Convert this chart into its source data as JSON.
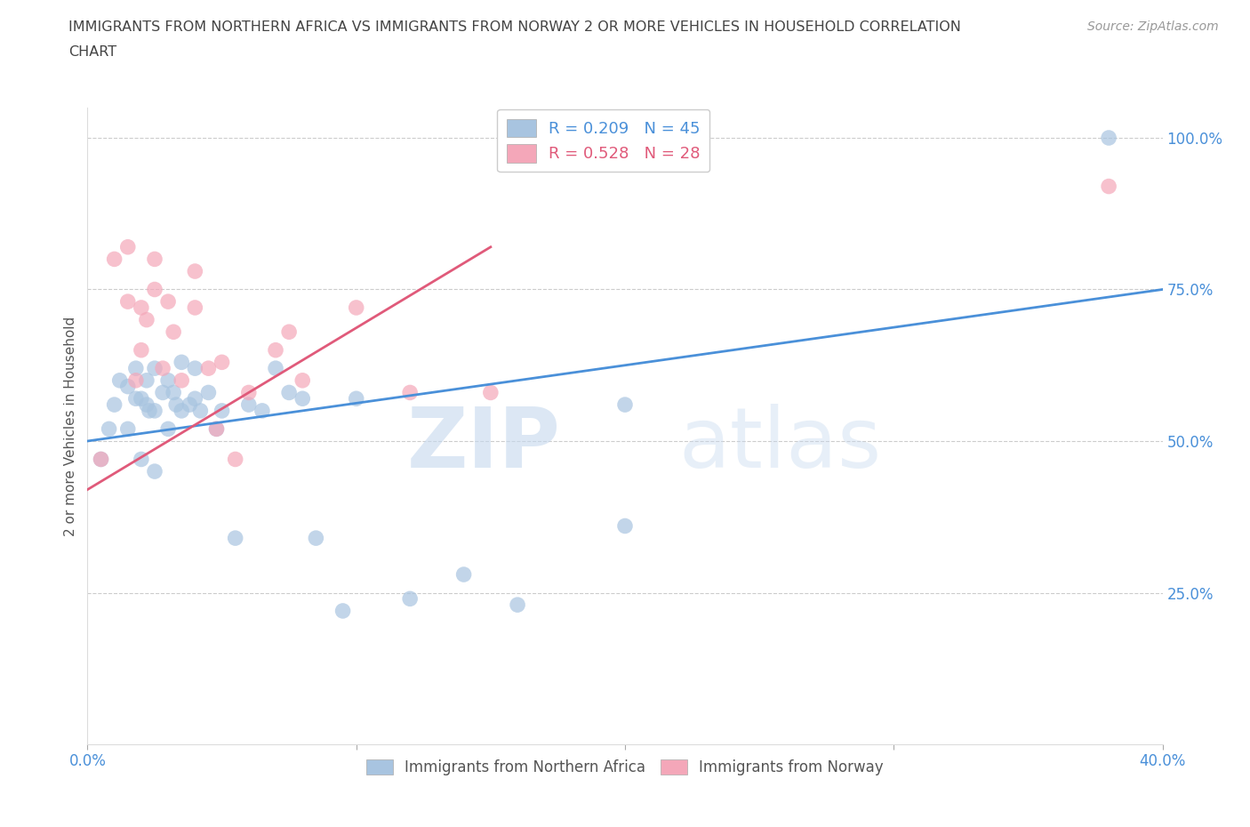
{
  "title_line1": "IMMIGRANTS FROM NORTHERN AFRICA VS IMMIGRANTS FROM NORWAY 2 OR MORE VEHICLES IN HOUSEHOLD CORRELATION",
  "title_line2": "CHART",
  "source": "Source: ZipAtlas.com",
  "ylabel": "2 or more Vehicles in Household",
  "watermark_zip": "ZIP",
  "watermark_atlas": "atlas",
  "xlim": [
    0.0,
    0.4
  ],
  "ylim": [
    0.0,
    1.05
  ],
  "xticks": [
    0.0,
    0.1,
    0.2,
    0.3,
    0.4
  ],
  "xticklabels": [
    "0.0%",
    "",
    "",
    "",
    "40.0%"
  ],
  "yticks_right": [
    0.25,
    0.5,
    0.75,
    1.0
  ],
  "yticklabels_right": [
    "25.0%",
    "50.0%",
    "75.0%",
    "100.0%"
  ],
  "blue_color": "#a8c4e0",
  "pink_color": "#f4a7b9",
  "blue_line_color": "#4a90d9",
  "pink_line_color": "#e05a7a",
  "blue_label": "Immigrants from Northern Africa",
  "pink_label": "Immigrants from Norway",
  "legend_R_blue": "R = 0.209",
  "legend_N_blue": "N = 45",
  "legend_R_pink": "R = 0.528",
  "legend_N_pink": "N = 28",
  "grid_color": "#cccccc",
  "background_color": "#ffffff",
  "title_color": "#444444",
  "axis_label_color": "#555555",
  "tick_color_blue": "#4a90d9",
  "blue_scatter_x": [
    0.005,
    0.008,
    0.01,
    0.012,
    0.015,
    0.015,
    0.018,
    0.018,
    0.02,
    0.02,
    0.022,
    0.022,
    0.023,
    0.025,
    0.025,
    0.025,
    0.028,
    0.03,
    0.03,
    0.032,
    0.033,
    0.035,
    0.035,
    0.038,
    0.04,
    0.04,
    0.042,
    0.045,
    0.048,
    0.05,
    0.055,
    0.06,
    0.065,
    0.07,
    0.075,
    0.08,
    0.085,
    0.095,
    0.1,
    0.12,
    0.14,
    0.16,
    0.2,
    0.2,
    0.38
  ],
  "blue_scatter_y": [
    0.47,
    0.52,
    0.56,
    0.6,
    0.52,
    0.59,
    0.57,
    0.62,
    0.47,
    0.57,
    0.56,
    0.6,
    0.55,
    0.45,
    0.55,
    0.62,
    0.58,
    0.6,
    0.52,
    0.58,
    0.56,
    0.55,
    0.63,
    0.56,
    0.57,
    0.62,
    0.55,
    0.58,
    0.52,
    0.55,
    0.34,
    0.56,
    0.55,
    0.62,
    0.58,
    0.57,
    0.34,
    0.22,
    0.57,
    0.24,
    0.28,
    0.23,
    0.56,
    0.36,
    1.0
  ],
  "pink_scatter_x": [
    0.005,
    0.01,
    0.015,
    0.015,
    0.018,
    0.02,
    0.02,
    0.022,
    0.025,
    0.025,
    0.028,
    0.03,
    0.032,
    0.035,
    0.04,
    0.04,
    0.045,
    0.048,
    0.05,
    0.055,
    0.06,
    0.07,
    0.075,
    0.08,
    0.1,
    0.12,
    0.15,
    0.38
  ],
  "pink_scatter_y": [
    0.47,
    0.8,
    0.73,
    0.82,
    0.6,
    0.65,
    0.72,
    0.7,
    0.75,
    0.8,
    0.62,
    0.73,
    0.68,
    0.6,
    0.72,
    0.78,
    0.62,
    0.52,
    0.63,
    0.47,
    0.58,
    0.65,
    0.68,
    0.6,
    0.72,
    0.58,
    0.58,
    0.92
  ],
  "blue_line_x": [
    0.0,
    0.4
  ],
  "blue_line_y": [
    0.5,
    0.75
  ],
  "pink_line_x": [
    0.0,
    0.15
  ],
  "pink_line_y": [
    0.42,
    0.82
  ]
}
